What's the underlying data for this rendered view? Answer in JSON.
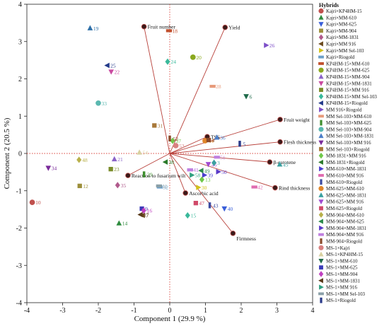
{
  "chart_data": {
    "type": "scatter",
    "subtype": "pca-biplot",
    "xlabel": "Component 1 (29.9 %)",
    "ylabel": "Component 2 (20.5 %)",
    "xlim": [
      -4,
      4
    ],
    "ylim": [
      -4,
      4
    ],
    "x_ticks": [
      "-4",
      "-3",
      "-2",
      "-1",
      "0",
      "1",
      "2",
      "3",
      "4"
    ],
    "y_ticks": [
      "-4",
      "-3",
      "-2",
      "-1",
      "0",
      "1",
      "2",
      "3",
      "4"
    ],
    "reference_lines": "dotted red at x=0 and y=0",
    "legend": {
      "title": "Hybrids",
      "placement": "right"
    },
    "series": [
      {
        "id": 10,
        "name": "Kajri×KP4HM-15",
        "marker": "circle",
        "color": "#c0504d"
      },
      {
        "id": 14,
        "name": "Kajri×MM-610",
        "marker": "triangle-up",
        "color": "#2e8b3e"
      },
      {
        "id": 40,
        "name": "Kajri×MM-625",
        "marker": "triangle-down",
        "color": "#3a5fd9"
      },
      {
        "id": 12,
        "name": "Kajri×MM-904",
        "marker": "square",
        "color": "#9c8f3a"
      },
      {
        "id": 35,
        "name": "Kajri×MM-1831",
        "marker": "diamond",
        "color": "#b05a8c"
      },
      {
        "id": 7,
        "name": "Kajri×MM 916",
        "marker": "triangle-left",
        "color": "#6b4a1f"
      },
      {
        "id": 30,
        "name": "Kajri×MM Sel-103",
        "marker": "triangle-right",
        "color": "#d2c21a"
      },
      {
        "id": 32,
        "name": "Kajri×Riogold",
        "marker": "rect-h",
        "color": "#6a9fc8"
      },
      {
        "id": 18,
        "name": "KP4HM-15×MM-610",
        "marker": "rect-h",
        "color": "#c1502e"
      },
      {
        "id": 20,
        "name": "KP4HM-15×MM-625",
        "marker": "circle",
        "color": "#8aa81e"
      },
      {
        "id": 21,
        "name": "KP4HM-15×MM-904",
        "marker": "triangle-up",
        "color": "#8b63c8"
      },
      {
        "id": 22,
        "name": "KP4HM-15×MM-1831",
        "marker": "triangle-down",
        "color": "#c94aa0"
      },
      {
        "id": 23,
        "name": "KP4HM-15×MM 916",
        "marker": "square",
        "color": "#7a8c2a"
      },
      {
        "id": 24,
        "name": "KP4HM-15×MM Sel-103",
        "marker": "diamond",
        "color": "#39b89a"
      },
      {
        "id": 25,
        "name": "KP4HM-15×Riogold",
        "marker": "triangle-left",
        "color": "#233a8a"
      },
      {
        "id": 26,
        "name": "MM 916×Riogold",
        "marker": "triangle-right",
        "color": "#7d4fc8"
      },
      {
        "id": 28,
        "name": "MM Sel-103×MM-610",
        "marker": "rect-h",
        "color": "#e79a7a"
      },
      {
        "id": 29,
        "name": "MM Sel-103×MM-625",
        "marker": "rect-v",
        "color": "#3f8f2f"
      },
      {
        "id": 33,
        "name": "MM Sel-103×MM-904",
        "marker": "circle",
        "color": "#5ab8b0"
      },
      {
        "id": 36,
        "name": "MM Sel-103×MM-1831",
        "marker": "triangle-up",
        "color": "#4d7fc8"
      },
      {
        "id": 34,
        "name": "MM Sel-103×MM 916",
        "marker": "triangle-down",
        "color": "#7a2a9a"
      },
      {
        "id": 31,
        "name": "MM Sel-103×Riogold",
        "marker": "square",
        "color": "#a8783a"
      },
      {
        "id": 37,
        "name": "MM-1831×MM 916",
        "marker": "diamond",
        "color": "#6fc84a"
      },
      {
        "id": 38,
        "name": "MM-1831×Riogold",
        "marker": "triangle-left",
        "color": "#2a7a2a"
      },
      {
        "id": 39,
        "name": "MM-610×MM-1831",
        "marker": "triangle-right",
        "color": "#4c3fd0"
      },
      {
        "id": 42,
        "name": "MM-610×MM 916",
        "marker": "rect-h",
        "color": "#e06bb0"
      },
      {
        "id": 43,
        "name": "MM-610×Riogold",
        "marker": "rect-v",
        "color": "#3c4aa0"
      },
      {
        "id": 44,
        "name": "MM-625×MM-610",
        "marker": "circle",
        "color": "#e0862a"
      },
      {
        "id": 45,
        "name": "MM-625×MM-1831",
        "marker": "triangle-up",
        "color": "#3aa0a0"
      },
      {
        "id": 46,
        "name": "MM-625×MM 916",
        "marker": "triangle-down",
        "color": "#a04ad0"
      },
      {
        "id": 47,
        "name": "MM-625×Riogold",
        "marker": "square",
        "color": "#d04a6a"
      },
      {
        "id": 48,
        "name": "MM-904×MM-610",
        "marker": "diamond",
        "color": "#b8b04a"
      },
      {
        "id": 49,
        "name": "MM-904×MM-625",
        "marker": "triangle-left",
        "color": "#2a8a4a"
      },
      {
        "id": 50,
        "name": "MM-904×MM-1831",
        "marker": "triangle-right",
        "color": "#5a3ac8"
      },
      {
        "id": 51,
        "name": "MM-904×MM 916",
        "marker": "rect-h",
        "color": "#c080e0"
      },
      {
        "id": 52,
        "name": "MM-904×Riogold",
        "marker": "rect-v",
        "color": "#8a4a2a"
      },
      {
        "id": 53,
        "name": "MS-1×Kajri",
        "marker": "circle",
        "color": "#d88080"
      },
      {
        "id": 54,
        "name": "MS-1×KP4HM-15",
        "marker": "triangle-up",
        "color": "#d8d0a0"
      },
      {
        "id": 6,
        "name": "MS-1×MM-610",
        "marker": "triangle-down",
        "color": "#1f6a4a"
      },
      {
        "id": 9,
        "name": "MS-1×MM-625",
        "marker": "square",
        "color": "#3a3ab8"
      },
      {
        "id": 16,
        "name": "MS-1×MM-904",
        "marker": "diamond",
        "color": "#c040c0"
      },
      {
        "id": 17,
        "name": "MS-1×MM-1831",
        "marker": "triangle-left",
        "color": "#5a3a1a"
      },
      {
        "id": 58,
        "name": "MS-1×MM 916",
        "marker": "triangle-right",
        "color": "#30a080"
      },
      {
        "id": 11,
        "name": "MS-1×MM Sel-103",
        "marker": "rect-h",
        "color": "#8aa0a8"
      },
      {
        "id": 5,
        "name": "MS-1×Riogold",
        "marker": "rect-v",
        "color": "#2a3a8a"
      },
      {
        "id": 3,
        "name": "",
        "marker": "diamond",
        "color": "#3aa0a0"
      },
      {
        "id": 4,
        "name": "",
        "marker": "square",
        "color": "#8a4a2a"
      },
      {
        "id": 13,
        "name": "",
        "marker": "diamond",
        "color": "#6fc84a"
      },
      {
        "id": 15,
        "name": "",
        "marker": "diamond",
        "color": "#39b89a"
      },
      {
        "id": 19,
        "name": "",
        "marker": "triangle-up",
        "color": "#2e6fa8"
      },
      {
        "id": 41,
        "name": "",
        "marker": "rect-h",
        "color": "#c080e0"
      }
    ],
    "scores": [
      {
        "id": "10",
        "x": -3.85,
        "y": -1.31
      },
      {
        "id": "14",
        "x": -1.42,
        "y": -1.87
      },
      {
        "id": "40",
        "x": 1.53,
        "y": -1.48
      },
      {
        "id": "12",
        "x": -2.52,
        "y": -0.87
      },
      {
        "id": "35",
        "x": -1.46,
        "y": -0.85
      },
      {
        "id": "7",
        "x": -0.76,
        "y": -1.66
      },
      {
        "id": "30",
        "x": 0.8,
        "y": -0.91
      },
      {
        "id": "32",
        "x": -0.28,
        "y": -0.9
      },
      {
        "id": "18",
        "x": -0.02,
        "y": 3.29
      },
      {
        "id": "20",
        "x": 0.65,
        "y": 2.58
      },
      {
        "id": "21",
        "x": -1.55,
        "y": -0.15
      },
      {
        "id": "22",
        "x": -1.64,
        "y": 2.19
      },
      {
        "id": "23",
        "x": -1.65,
        "y": -0.42
      },
      {
        "id": "24",
        "x": -0.06,
        "y": 2.46
      },
      {
        "id": "25",
        "x": -1.75,
        "y": 2.36
      },
      {
        "id": "26",
        "x": 2.7,
        "y": 2.9
      },
      {
        "id": "28",
        "x": 1.2,
        "y": 1.8
      },
      {
        "id": "29",
        "x": -0.72,
        "y": -0.56
      },
      {
        "id": "31",
        "x": -0.43,
        "y": 0.75
      },
      {
        "id": "33",
        "x": -2.0,
        "y": 1.35
      },
      {
        "id": "34",
        "x": -3.4,
        "y": -0.39
      },
      {
        "id": "36",
        "x": 1.32,
        "y": 0.43
      },
      {
        "id": "37",
        "x": 0.08,
        "y": 0.34
      },
      {
        "id": "38",
        "x": -0.12,
        "y": -0.23
      },
      {
        "id": "39",
        "x": 0.97,
        "y": -0.58
      },
      {
        "id": "41",
        "x": 0.57,
        "y": -0.44
      },
      {
        "id": "42",
        "x": 2.37,
        "y": -0.9
      },
      {
        "id": "43",
        "x": 1.12,
        "y": -1.39
      },
      {
        "id": "44",
        "x": 0.99,
        "y": 0.34
      },
      {
        "id": "45",
        "x": 3.08,
        "y": -0.29
      },
      {
        "id": "46",
        "x": 1.08,
        "y": -0.29
      },
      {
        "id": "47",
        "x": 0.73,
        "y": -1.33
      },
      {
        "id": "48",
        "x": -2.54,
        "y": -0.17
      },
      {
        "id": "49",
        "x": 0.88,
        "y": -0.46
      },
      {
        "id": "50",
        "x": 1.36,
        "y": -0.49
      },
      {
        "id": "51",
        "x": 1.32,
        "y": -0.1
      },
      {
        "id": "52",
        "x": 0.0,
        "y": 0.4
      },
      {
        "id": "53",
        "x": 0.17,
        "y": 0.21
      },
      {
        "id": "54",
        "x": -0.85,
        "y": 0.03
      },
      {
        "id": "6",
        "x": 2.14,
        "y": 1.53
      },
      {
        "id": "9",
        "x": -0.78,
        "y": -1.48
      },
      {
        "id": "16",
        "x": -0.73,
        "y": -1.53
      },
      {
        "id": "17",
        "x": -0.82,
        "y": -1.64
      },
      {
        "id": "58",
        "x": 0.62,
        "y": -0.58
      },
      {
        "id": "11",
        "x": -0.3,
        "y": -0.87
      },
      {
        "id": "5",
        "x": 1.96,
        "y": 0.26
      },
      {
        "id": "3",
        "x": 1.24,
        "y": -0.25
      },
      {
        "id": "4",
        "x": 1.09,
        "y": 0.36
      },
      {
        "id": "13",
        "x": 0.9,
        "y": -0.7
      },
      {
        "id": "15",
        "x": 0.5,
        "y": -1.66
      },
      {
        "id": "19",
        "x": -2.23,
        "y": 3.36
      },
      {
        "id": "41b",
        "x": 0.57,
        "y": -0.44
      }
    ],
    "loadings": [
      {
        "name": "Fruit number",
        "x": -0.72,
        "y": 3.4
      },
      {
        "name": "Yield",
        "x": 1.55,
        "y": 3.38
      },
      {
        "name": "Fruit weight",
        "x": 3.09,
        "y": 0.91
      },
      {
        "name": "TSS",
        "x": 1.05,
        "y": 0.45
      },
      {
        "name": "Flesh thickness",
        "x": 3.09,
        "y": 0.31
      },
      {
        "name": "β-carotene",
        "x": 2.8,
        "y": -0.23
      },
      {
        "name": "Rind thickness",
        "x": 2.95,
        "y": -0.92
      },
      {
        "name": "Reaction to fusarium wilt",
        "x": -1.17,
        "y": -0.59
      },
      {
        "name": "Ascorbic acid",
        "x": 0.44,
        "y": -1.06
      },
      {
        "name": "Firmness",
        "x": 1.77,
        "y": -2.14
      }
    ],
    "legend_entries": [
      "Kajri×KP4HM-15",
      "Kajri×MM-610",
      "Kajri×MM-625",
      "Kajri×MM-904",
      "Kajri×MM-1831",
      "Kajri×MM 916",
      "Kajri×MM Sel-103",
      "Kajri×Riogold",
      "KP4HM-15×MM-610",
      "KP4HM-15×MM-625",
      "KP4HM-15×MM-904",
      "KP4HM-15×MM-1831",
      "KP4HM-15×MM 916",
      "KP4HM-15×MM Sel-103",
      "KP4HM-15×Riogold",
      "MM 916×Riogold",
      "MM Sel-103×MM-610",
      "MM Sel-103×MM-625",
      "MM Sel-103×MM-904",
      "MM Sel-103×MM-1831",
      "MM Sel-103×MM 916",
      "MM Sel-103×Riogold",
      "MM-1831×MM 916",
      "MM-1831×Riogold",
      "MM-610×MM-1831",
      "MM-610×MM 916",
      "MM-610×Riogold",
      "MM-625×MM-610",
      "MM-625×MM-1831",
      "MM-625×MM 916",
      "MM-625×Riogold",
      "MM-904×MM-610",
      "MM-904×MM-625",
      "MM-904×MM-1831",
      "MM-904×MM 916",
      "MM-904×Riogold",
      "MS-1×Kajri",
      "MS-1×KP4HM-15",
      "MS-1×MM-610",
      "MS-1×MM-625",
      "MS-1×MM-904",
      "MS-1×MM-1831",
      "MS-1×MM 916",
      "MS-1×MM Sel-103",
      "MS-1×Riogold"
    ]
  }
}
